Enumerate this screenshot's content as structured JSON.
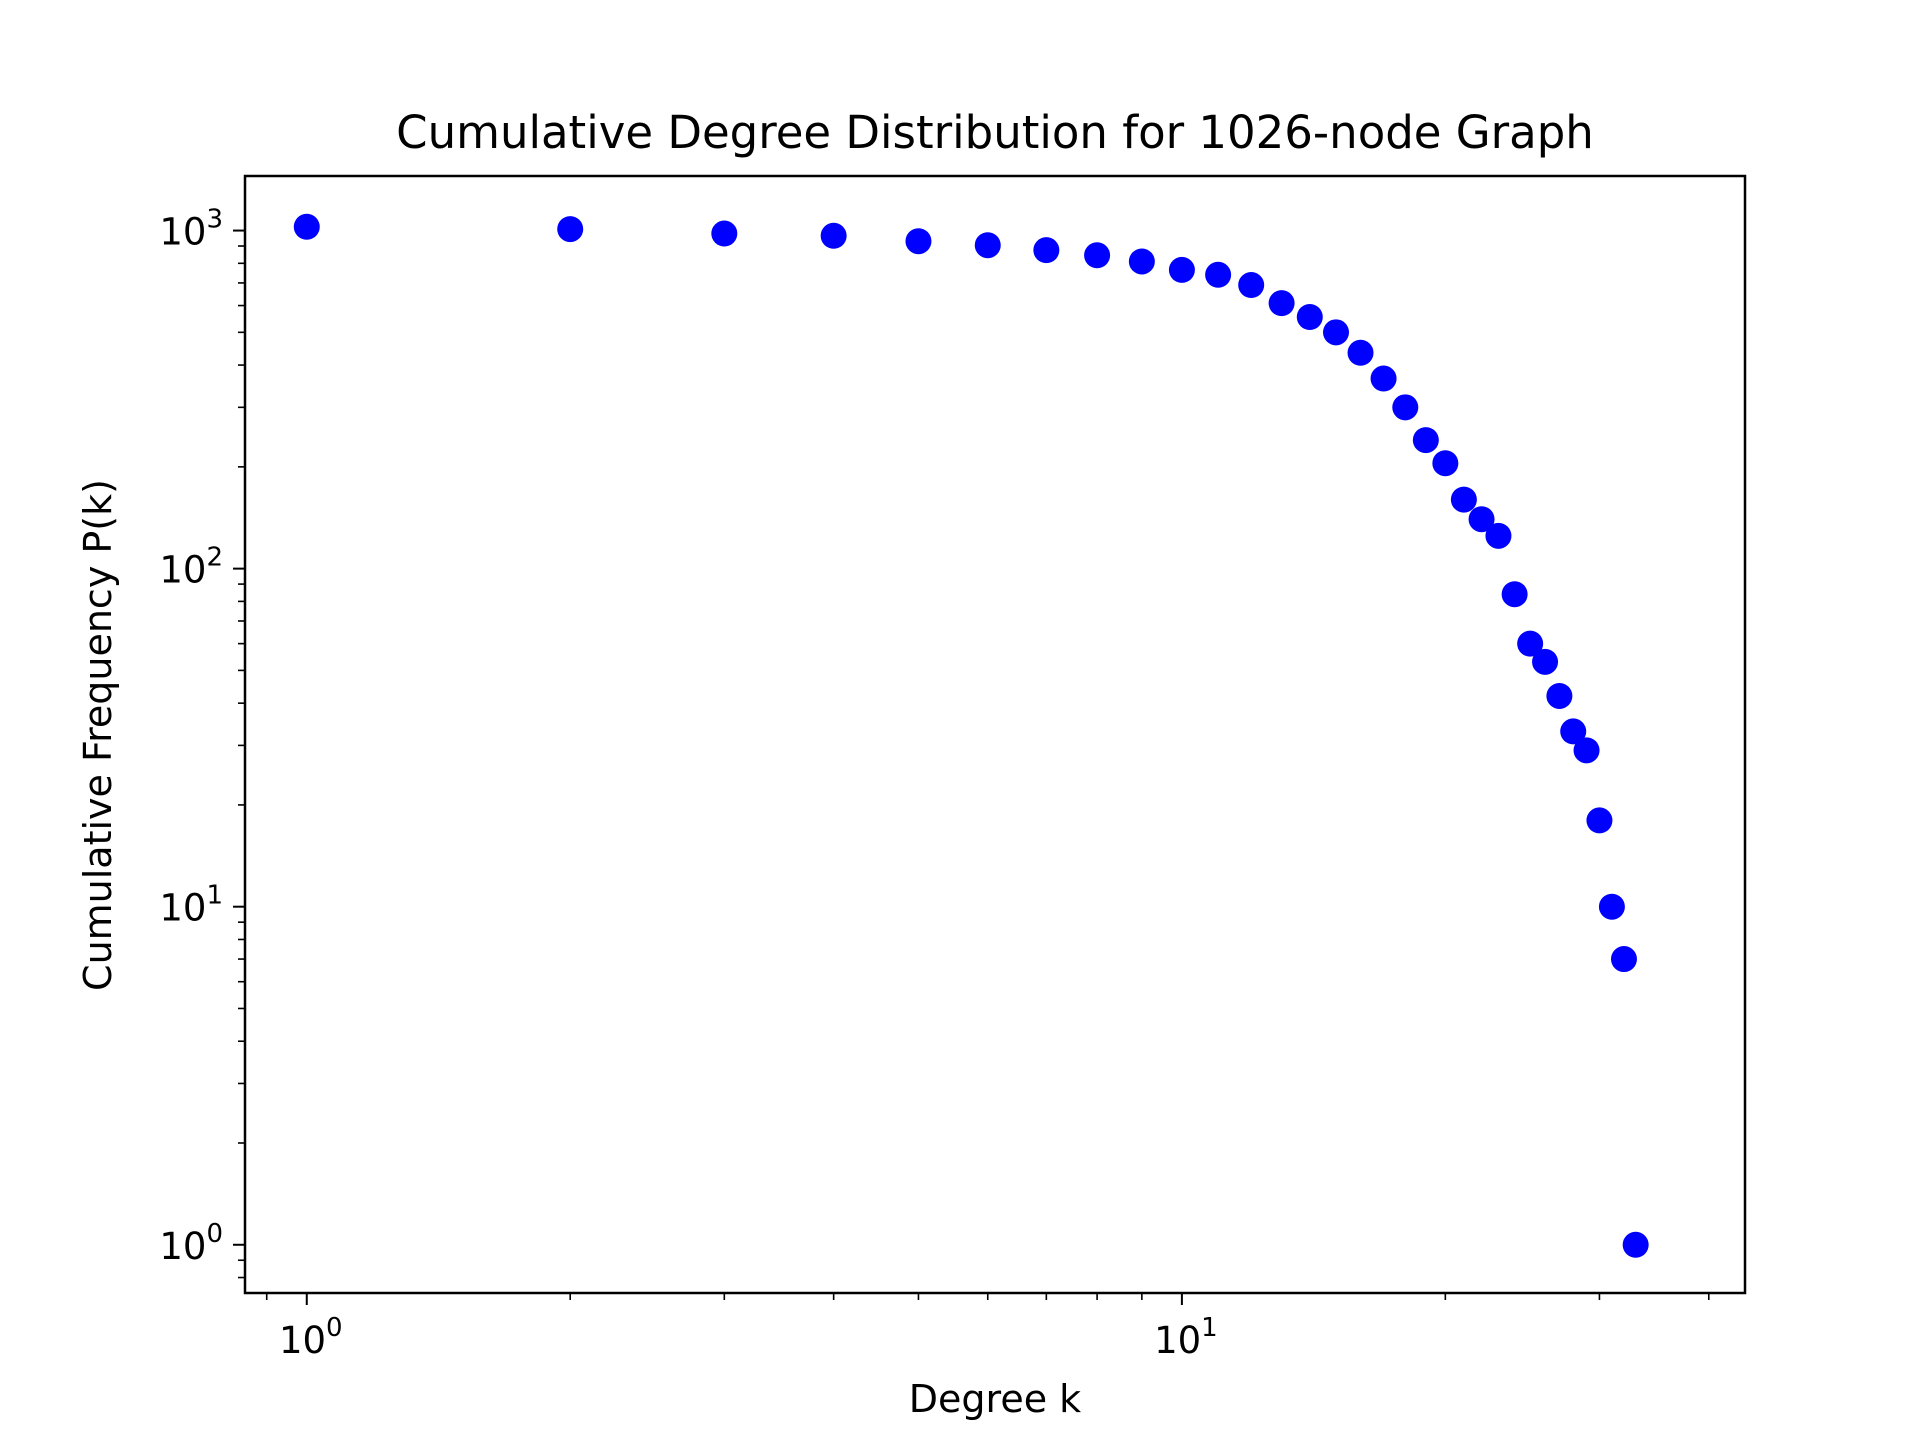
{
  "chart_data": {
    "type": "scatter",
    "title": "Cumulative Degree Distribution for 1026-node Graph",
    "xlabel": "Degree k",
    "ylabel": "Cumulative Frequency P(k)",
    "x_scale": "log",
    "y_scale": "log",
    "xlim": [
      0.85,
      44
    ],
    "ylim": [
      0.72,
      1450
    ],
    "x_ticks": [
      {
        "base": "10",
        "exp": "0",
        "value": 1
      },
      {
        "base": "10",
        "exp": "1",
        "value": 10
      }
    ],
    "y_ticks": [
      {
        "base": "10",
        "exp": "0",
        "value": 1
      },
      {
        "base": "10",
        "exp": "1",
        "value": 10
      },
      {
        "base": "10",
        "exp": "2",
        "value": 100
      },
      {
        "base": "10",
        "exp": "3",
        "value": 1000
      }
    ],
    "grid": false,
    "marker_color": "#0000ff",
    "points": [
      {
        "x": 1,
        "y": 1026
      },
      {
        "x": 2,
        "y": 1010
      },
      {
        "x": 3,
        "y": 980
      },
      {
        "x": 4,
        "y": 965
      },
      {
        "x": 5,
        "y": 930
      },
      {
        "x": 6,
        "y": 905
      },
      {
        "x": 7,
        "y": 875
      },
      {
        "x": 8,
        "y": 845
      },
      {
        "x": 9,
        "y": 810
      },
      {
        "x": 10,
        "y": 765
      },
      {
        "x": 11,
        "y": 740
      },
      {
        "x": 12,
        "y": 690
      },
      {
        "x": 13,
        "y": 610
      },
      {
        "x": 14,
        "y": 555
      },
      {
        "x": 15,
        "y": 500
      },
      {
        "x": 16,
        "y": 435
      },
      {
        "x": 17,
        "y": 365
      },
      {
        "x": 18,
        "y": 300
      },
      {
        "x": 19,
        "y": 240
      },
      {
        "x": 20,
        "y": 205
      },
      {
        "x": 21,
        "y": 160
      },
      {
        "x": 22,
        "y": 140
      },
      {
        "x": 23,
        "y": 125
      },
      {
        "x": 24,
        "y": 84
      },
      {
        "x": 25,
        "y": 60
      },
      {
        "x": 26,
        "y": 53
      },
      {
        "x": 27,
        "y": 42
      },
      {
        "x": 28,
        "y": 33
      },
      {
        "x": 29,
        "y": 29
      },
      {
        "x": 30,
        "y": 18
      },
      {
        "x": 31,
        "y": 10
      },
      {
        "x": 32,
        "y": 7
      },
      {
        "x": 33,
        "y": 1
      }
    ]
  }
}
